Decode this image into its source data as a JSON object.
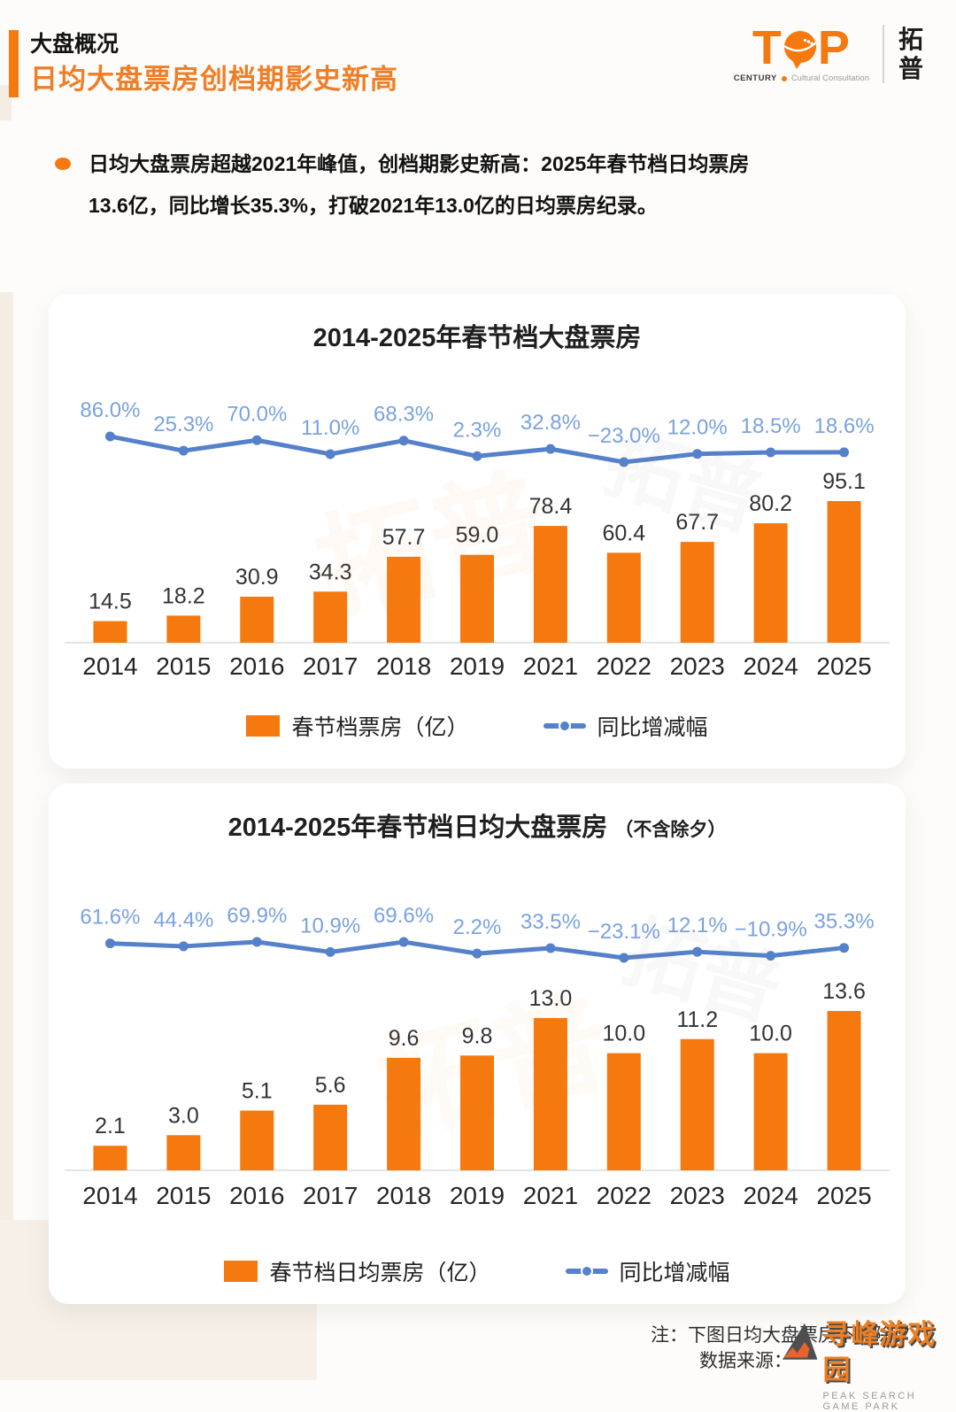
{
  "header": {
    "eyebrow": "大盘概况",
    "title": "日均大盘票房创档期影史新高",
    "brand": {
      "wordmark_t": "T",
      "wordmark_p": "P",
      "century": "CENTURY",
      "caption": "Cultural Consultation",
      "name_cn": "拓普"
    }
  },
  "insight": {
    "line1": "日均大盘票房超越2021年峰值，创档期影史新高：2025年春节档日均票房",
    "line2": "13.6亿，同比增长35.3%，打破2021年13.0亿的日均票房纪录。"
  },
  "watermark_ghost": "拓普",
  "footer": {
    "note": "注：下图日均大盘票房不含除夕",
    "source_label": "数据来源：",
    "watermark_title": "寻峰游戏园",
    "watermark_caption": "PEAK SEARCH GAME PARK"
  },
  "colors": {
    "accent_orange": "#F5790E",
    "title_orange": "#EF7E26",
    "line_blue": "#5580CA",
    "pct_label_blue": "#7AA2DF",
    "value_label": "#333333",
    "year_label": "#262626",
    "axis_gray": "#DCDCDC"
  },
  "chart_data": [
    {
      "type": "bar",
      "title": "2014-2025年春节档大盘票房",
      "title_suffix": "",
      "categories": [
        "2014",
        "2015",
        "2016",
        "2017",
        "2018",
        "2019",
        "2021",
        "2022",
        "2023",
        "2024",
        "2025"
      ],
      "series": [
        {
          "name": "春节档票房（亿）",
          "type": "bar",
          "values": [
            14.5,
            18.2,
            30.9,
            34.3,
            57.7,
            59.0,
            78.4,
            60.4,
            67.7,
            80.2,
            95.1
          ]
        },
        {
          "name": "同比增减幅",
          "type": "line",
          "values_pct": [
            86.0,
            25.3,
            70.0,
            11.0,
            68.3,
            2.3,
            32.8,
            -23.0,
            12.0,
            18.5,
            18.6
          ]
        }
      ],
      "ylabel": "",
      "xlabel": "",
      "grid": false,
      "legend_position": "bottom"
    },
    {
      "type": "bar",
      "title": "2014-2025年春节档日均大盘票房",
      "title_suffix": "（不含除夕）",
      "categories": [
        "2014",
        "2015",
        "2016",
        "2017",
        "2018",
        "2019",
        "2021",
        "2022",
        "2023",
        "2024",
        "2025"
      ],
      "series": [
        {
          "name": "春节档日均票房（亿）",
          "type": "bar",
          "values": [
            2.1,
            3.0,
            5.1,
            5.6,
            9.6,
            9.8,
            13.0,
            10.0,
            11.2,
            10.0,
            13.6
          ]
        },
        {
          "name": "同比增减幅",
          "type": "line",
          "values_pct": [
            61.6,
            44.4,
            69.9,
            10.9,
            69.6,
            2.2,
            33.5,
            -23.1,
            12.1,
            -10.9,
            35.3
          ]
        }
      ],
      "ylabel": "",
      "xlabel": "",
      "grid": false,
      "legend_position": "bottom"
    }
  ]
}
